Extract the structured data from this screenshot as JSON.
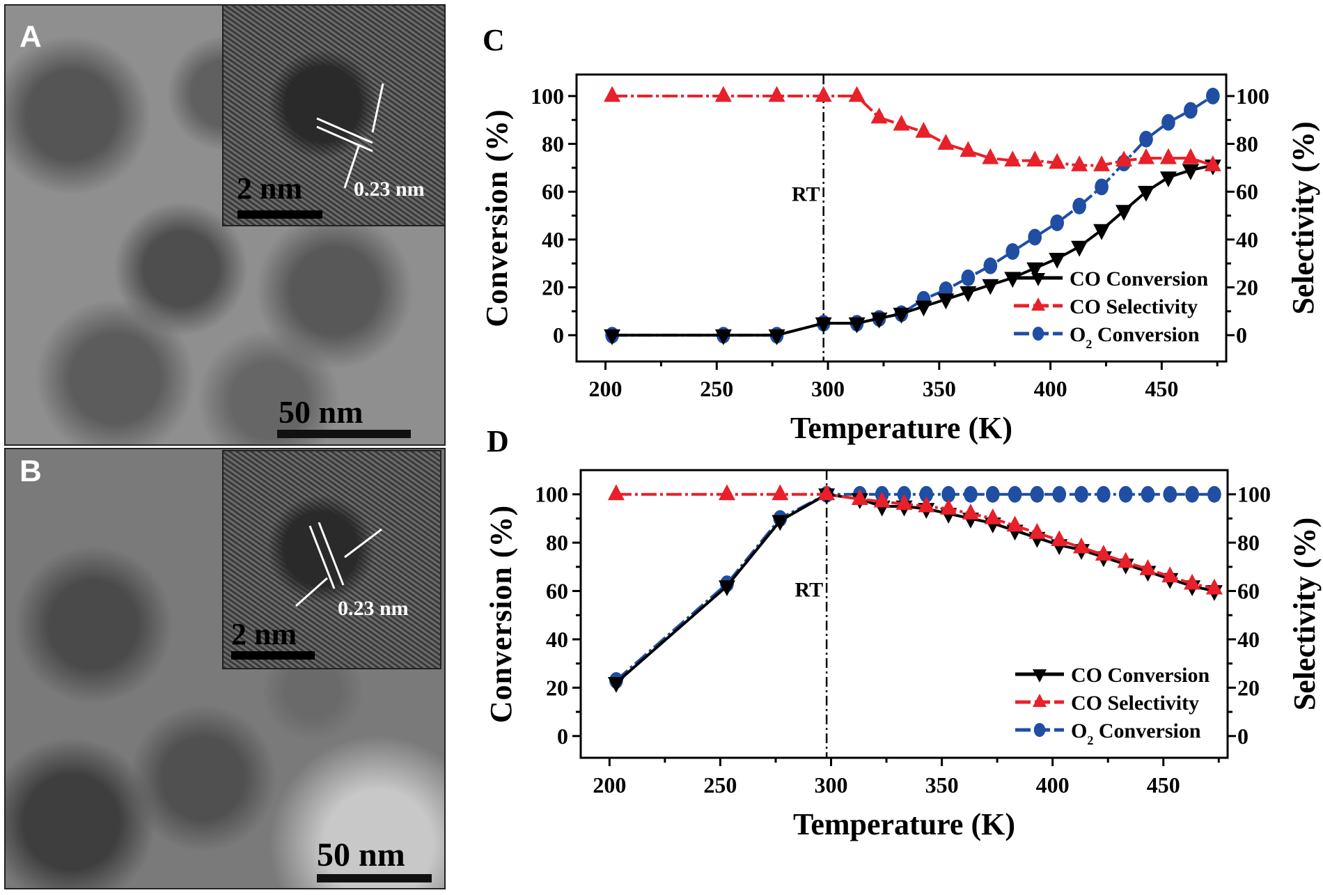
{
  "panels": {
    "A": {
      "letter": "A",
      "scale_bar": "50 nm",
      "inset_scale_bar": "2 nm",
      "lattice_label": "0.23 nm"
    },
    "B": {
      "letter": "B",
      "scale_bar": "50 nm",
      "inset_scale_bar": "2 nm",
      "lattice_label": "0.23 nm"
    }
  },
  "colors": {
    "co_conversion": "#000000",
    "co_selectivity": "#e8202a",
    "o2_conversion": "#1f4ea3"
  },
  "chart_data": [
    {
      "panel": "C",
      "type": "line",
      "xlabel": "Temperature (K)",
      "ylabel": "Conversion (%)",
      "y2label": "Selectivity (%)",
      "xlim": [
        187,
        479
      ],
      "ylim": [
        -11,
        109
      ],
      "xticks": [
        200,
        250,
        300,
        350,
        400,
        450
      ],
      "yticks": [
        0,
        20,
        40,
        60,
        80,
        100
      ],
      "annotation": {
        "text": "RT",
        "x": 298
      },
      "legend": "bottom-right",
      "grid": false,
      "x": [
        203,
        253,
        277,
        298,
        313,
        323,
        333,
        343,
        353,
        363,
        373,
        383,
        393,
        403,
        413,
        423,
        433,
        443,
        453,
        463,
        473
      ],
      "series": [
        {
          "name": "CO Conversion",
          "marker": "triangle-down",
          "color": "#000000",
          "values": [
            0,
            0,
            0,
            5,
            5,
            7,
            9,
            12,
            15,
            18,
            21,
            24,
            28,
            32,
            37,
            44,
            52,
            60,
            66,
            69,
            71
          ]
        },
        {
          "name": "CO Selectivity",
          "marker": "triangle-up",
          "color": "#e8202a",
          "values": [
            100,
            100,
            100,
            100,
            100,
            91,
            88,
            85,
            80,
            77,
            74,
            73,
            73,
            72,
            71,
            71,
            73,
            74,
            74,
            74,
            71
          ]
        },
        {
          "name": "O2 Conversion",
          "marker": "circle",
          "color": "#1f4ea3",
          "values": [
            0,
            0,
            0,
            5,
            5,
            7,
            9,
            15,
            19,
            24,
            29,
            35,
            41,
            47,
            54,
            62,
            72,
            82,
            89,
            94,
            100
          ]
        }
      ]
    },
    {
      "panel": "D",
      "type": "line",
      "xlabel": "Temperature (K)",
      "ylabel": "Conversion (%)",
      "y2label": "Selectivity (%)",
      "xlim": [
        187,
        479
      ],
      "ylim": [
        -9,
        110
      ],
      "xticks": [
        200,
        250,
        300,
        350,
        400,
        450
      ],
      "yticks": [
        0,
        20,
        40,
        60,
        80,
        100
      ],
      "annotation": {
        "text": "RT",
        "x": 298
      },
      "legend": "bottom-right",
      "grid": false,
      "x": [
        203,
        253,
        277,
        298,
        313,
        323,
        333,
        343,
        353,
        363,
        373,
        383,
        393,
        403,
        413,
        423,
        433,
        443,
        453,
        463,
        473
      ],
      "series": [
        {
          "name": "CO Conversion",
          "marker": "triangle-down",
          "color": "#000000",
          "values": [
            22,
            62,
            89,
            100,
            98,
            95,
            95,
            94,
            92,
            90,
            88,
            85,
            82,
            79,
            77,
            74,
            71,
            68,
            65,
            62,
            60
          ]
        },
        {
          "name": "CO Selectivity",
          "marker": "triangle-up",
          "color": "#e8202a",
          "values": [
            100,
            100,
            100,
            100,
            98,
            97,
            96,
            95,
            94,
            92,
            90,
            87,
            84,
            81,
            78,
            75,
            72,
            69,
            66,
            63,
            61
          ]
        },
        {
          "name": "O2 Conversion",
          "marker": "circle",
          "color": "#1f4ea3",
          "values": [
            23,
            63,
            90,
            100,
            100,
            100,
            100,
            100,
            100,
            100,
            100,
            100,
            100,
            100,
            100,
            100,
            100,
            100,
            100,
            100,
            100
          ]
        }
      ]
    }
  ]
}
